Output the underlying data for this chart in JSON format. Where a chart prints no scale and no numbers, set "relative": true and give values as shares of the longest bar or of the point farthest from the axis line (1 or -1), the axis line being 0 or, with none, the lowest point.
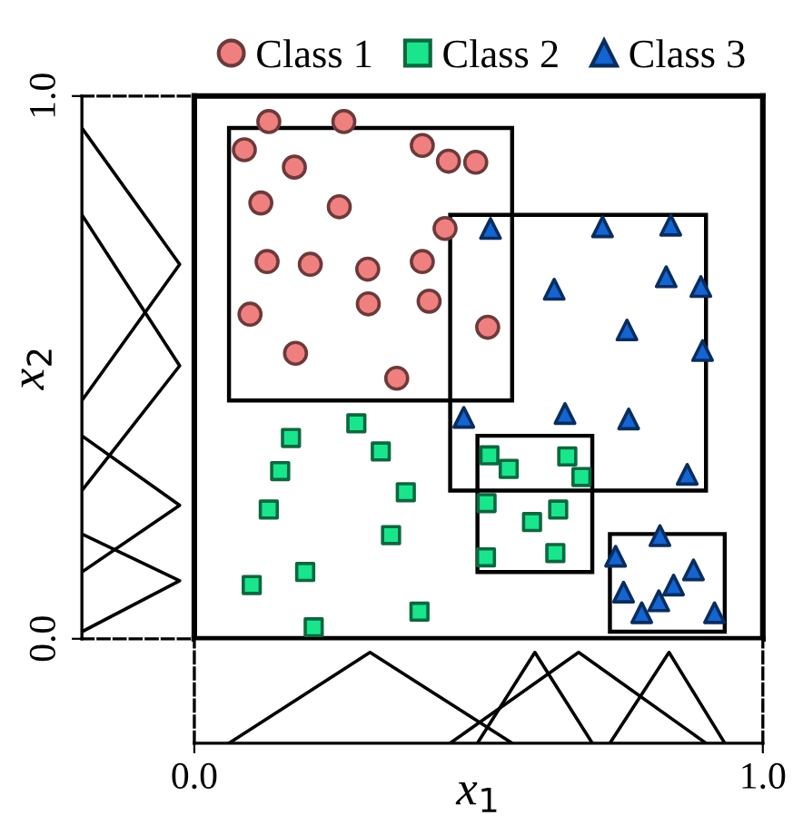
{
  "chart_data": [
    {
      "type": "line",
      "orientation": "horizontal",
      "relative": true,
      "ylabel": "x$_{2}$",
      "ylim": [
        0,
        1
      ],
      "yticks": [
        {
          "value": 0,
          "label": "0.0"
        },
        {
          "value": 1,
          "label": "1.0"
        }
      ],
      "tick_labels": "y",
      "color": "#000000",
      "series": [
        {
          "x": [
            0.941,
            0.69,
            0.439
          ],
          "values": [
            0,
            1,
            0
          ]
        },
        {
          "x": [
            0.781,
            0.503,
            0.273
          ],
          "values": [
            0,
            1,
            0
          ]
        },
        {
          "x": [
            0.374,
            0.246,
            0.123
          ],
          "values": [
            0,
            1,
            0
          ]
        },
        {
          "x": [
            0.193,
            0.107,
            0.013
          ],
          "values": [
            0,
            1,
            0
          ]
        }
      ]
    },
    {
      "type": "scatter",
      "xlim": [
        0,
        1
      ],
      "ylim": [
        0,
        1
      ],
      "tick_labels": false,
      "legend": "top",
      "series": [
        {
          "name": "Class 1",
          "color": "#f08080",
          "marker": "circle",
          "x": [
            0.131,
            0.263,
            0.088,
            0.176,
            0.401,
            0.447,
            0.495,
            0.117,
            0.255,
            0.441,
            0.128,
            0.204,
            0.305,
            0.401,
            0.098,
            0.306,
            0.413,
            0.516,
            0.178,
            0.356
          ],
          "values": [
            0.953,
            0.953,
            0.901,
            0.869,
            0.909,
            0.88,
            0.878,
            0.803,
            0.796,
            0.756,
            0.695,
            0.69,
            0.681,
            0.695,
            0.598,
            0.617,
            0.622,
            0.574,
            0.526,
            0.48
          ]
        },
        {
          "name": "Class 2",
          "color": "#19e68c",
          "marker": "square",
          "x": [
            0.17,
            0.285,
            0.328,
            0.151,
            0.372,
            0.131,
            0.346,
            0.101,
            0.195,
            0.21,
            0.396,
            0.519,
            0.553,
            0.656,
            0.681,
            0.514,
            0.594,
            0.64,
            0.513,
            0.635
          ],
          "values": [
            0.37,
            0.397,
            0.345,
            0.309,
            0.27,
            0.238,
            0.191,
            0.099,
            0.123,
            0.021,
            0.05,
            0.338,
            0.313,
            0.336,
            0.298,
            0.25,
            0.215,
            0.238,
            0.15,
            0.158
          ]
        },
        {
          "name": "Class 3",
          "color": "#1464d2",
          "marker": "triangle",
          "x": [
            0.521,
            0.718,
            0.838,
            0.633,
            0.83,
            0.891,
            0.761,
            0.894,
            0.474,
            0.652,
            0.764,
            0.867,
            0.819,
            0.741,
            0.878,
            0.755,
            0.843,
            0.817,
            0.787,
            0.915
          ],
          "values": [
            0.756,
            0.759,
            0.762,
            0.644,
            0.667,
            0.649,
            0.569,
            0.531,
            0.408,
            0.415,
            0.405,
            0.303,
            0.19,
            0.152,
            0.127,
            0.086,
            0.099,
            0.07,
            0.048,
            0.048
          ]
        }
      ]
    },
    {
      "type": "line",
      "relative": true,
      "xlabel": "x$_{1}$",
      "xlim": [
        0,
        1
      ],
      "xticks": [
        {
          "value": 0,
          "label": "0.0"
        },
        {
          "value": 1,
          "label": "1.0"
        }
      ],
      "tick_labels": "x",
      "color": "#000000",
      "series": [
        {
          "x": [
            0.061,
            0.309,
            0.559
          ],
          "values": [
            0,
            1,
            0
          ]
        },
        {
          "x": [
            0.45,
            0.676,
            0.9
          ],
          "values": [
            0,
            1,
            0
          ]
        },
        {
          "x": [
            0.498,
            0.599,
            0.7
          ],
          "values": [
            0,
            1,
            0
          ]
        },
        {
          "x": [
            0.731,
            0.835,
            0.933
          ],
          "values": [
            0,
            1,
            0
          ]
        }
      ]
    }
  ]
}
